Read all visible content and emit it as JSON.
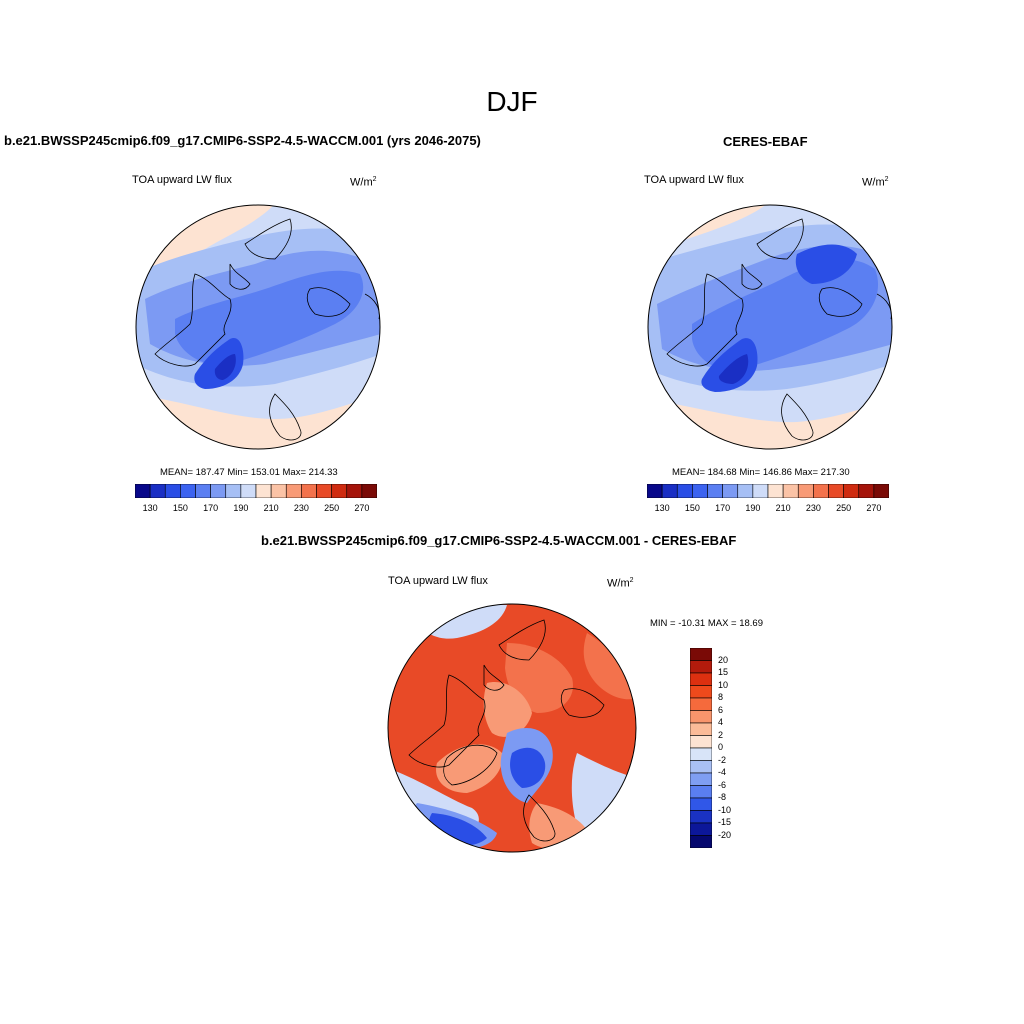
{
  "figure": {
    "title": "DJF"
  },
  "panels": [
    {
      "id": "model",
      "title": "b.e21.BWSSP245cmip6.f09_g17.CMIP6-SSP2-4.5-WACCM.001 (yrs 2046-2075)",
      "left_label": "TOA upward LW flux",
      "units": "W/m",
      "units_sup": "2",
      "stats": {
        "mean": "187.47",
        "min": "153.01",
        "max": "214.33",
        "text": "MEAN= 187.47  Min= 153.01  Max= 214.33"
      }
    },
    {
      "id": "obs",
      "title": "CERES-EBAF",
      "left_label": "TOA upward LW flux",
      "units": "W/m",
      "units_sup": "2",
      "stats": {
        "mean": "184.68",
        "min": "146.86",
        "max": "217.30",
        "text": "MEAN= 184.68  Min= 146.86  Max= 217.30"
      }
    },
    {
      "id": "diff",
      "title": "b.e21.BWSSP245cmip6.f09_g17.CMIP6-SSP2-4.5-WACCM.001 - CERES-EBAF",
      "left_label": "TOA upward LW flux",
      "units": "W/m",
      "units_sup": "2",
      "stats": {
        "min": "-10.31",
        "max": "18.69",
        "text": "MIN = -10.31 MAX =  18.69"
      }
    }
  ],
  "colorbar_abs": {
    "tick_labels": [
      "130",
      "150",
      "170",
      "190",
      "210",
      "230",
      "250",
      "270"
    ],
    "colors": [
      "#08088a",
      "#1a2fc4",
      "#2a4ee6",
      "#3c63f0",
      "#5b7ff2",
      "#7c9af3",
      "#a6bff5",
      "#cfdcf8",
      "#fde3d2",
      "#fbc3a6",
      "#f89a76",
      "#f3724c",
      "#e84a27",
      "#cf2b10",
      "#a5140a",
      "#7a0a06"
    ]
  },
  "colorbar_diff": {
    "levels": [
      "20",
      "15",
      "10",
      "8",
      "6",
      "4",
      "2",
      "0",
      "-2",
      "-4",
      "-6",
      "-8",
      "-10",
      "-15",
      "-20"
    ],
    "colors": [
      "#7a0a06",
      "#b31b0c",
      "#dc3010",
      "#ee4a1c",
      "#f56a3c",
      "#f8956c",
      "#fbbb98",
      "#fde3d2",
      "#d8e4f8",
      "#a9c0f4",
      "#7f9ef2",
      "#5a7ef0",
      "#3057e8",
      "#1a32c2",
      "#0c1799",
      "#05086e"
    ]
  },
  "map_colors": {
    "warm_light": "#fde3d2",
    "pale_blue": "#cfdcf8",
    "light_blue": "#a6bff5",
    "mid_blue": "#7c9af3",
    "blue": "#5b7ff2",
    "dark_blue": "#2a4ee6",
    "deep_blue": "#1a2fc4",
    "orange": "#f3724c",
    "red_orange": "#e84a27",
    "salmon": "#f89a76"
  }
}
